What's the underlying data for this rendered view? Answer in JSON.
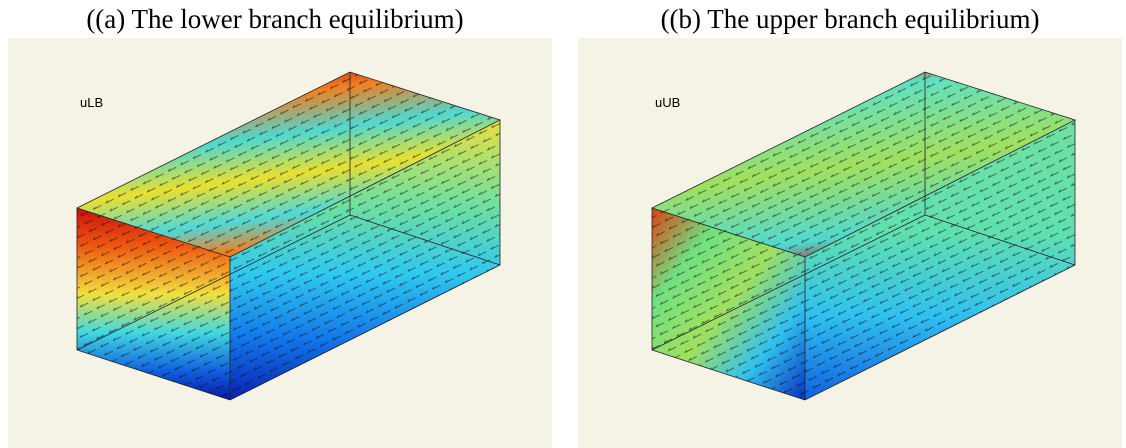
{
  "panels": [
    {
      "caption": "((a) The lower branch equilibrium)",
      "label": "uLB"
    },
    {
      "caption": "((b) The upper branch equilibrium)",
      "label": "uUB"
    }
  ]
}
